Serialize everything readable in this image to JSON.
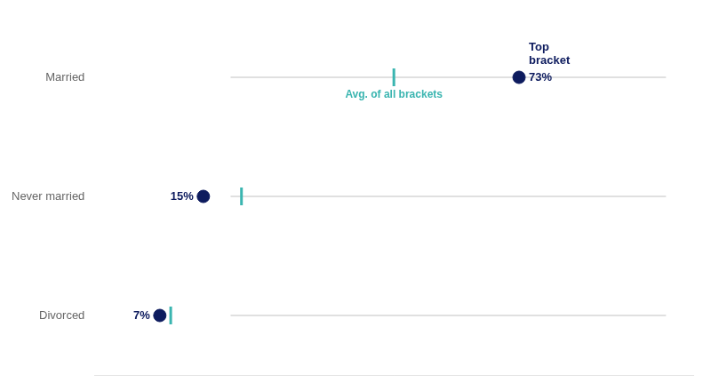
{
  "chart_data": {
    "type": "dot",
    "categories": [
      "Married",
      "Never married",
      "Divorced"
    ],
    "series": [
      {
        "name": "Top\nbracket",
        "color": "#0d1b5e",
        "marker": "o",
        "values": [
          73,
          15,
          7
        ],
        "data_labels": true,
        "value_labels": [
          "73%",
          "15%",
          "7%"
        ]
      },
      {
        "name": "Avg. of all brackets",
        "color": "#3ab5b0",
        "marker": "|",
        "values": [
          50,
          22,
          9
        ]
      }
    ],
    "track": [
      20,
      100
    ],
    "xlim": [
      -5,
      105
    ],
    "tick_labels": "y",
    "grid": false
  }
}
